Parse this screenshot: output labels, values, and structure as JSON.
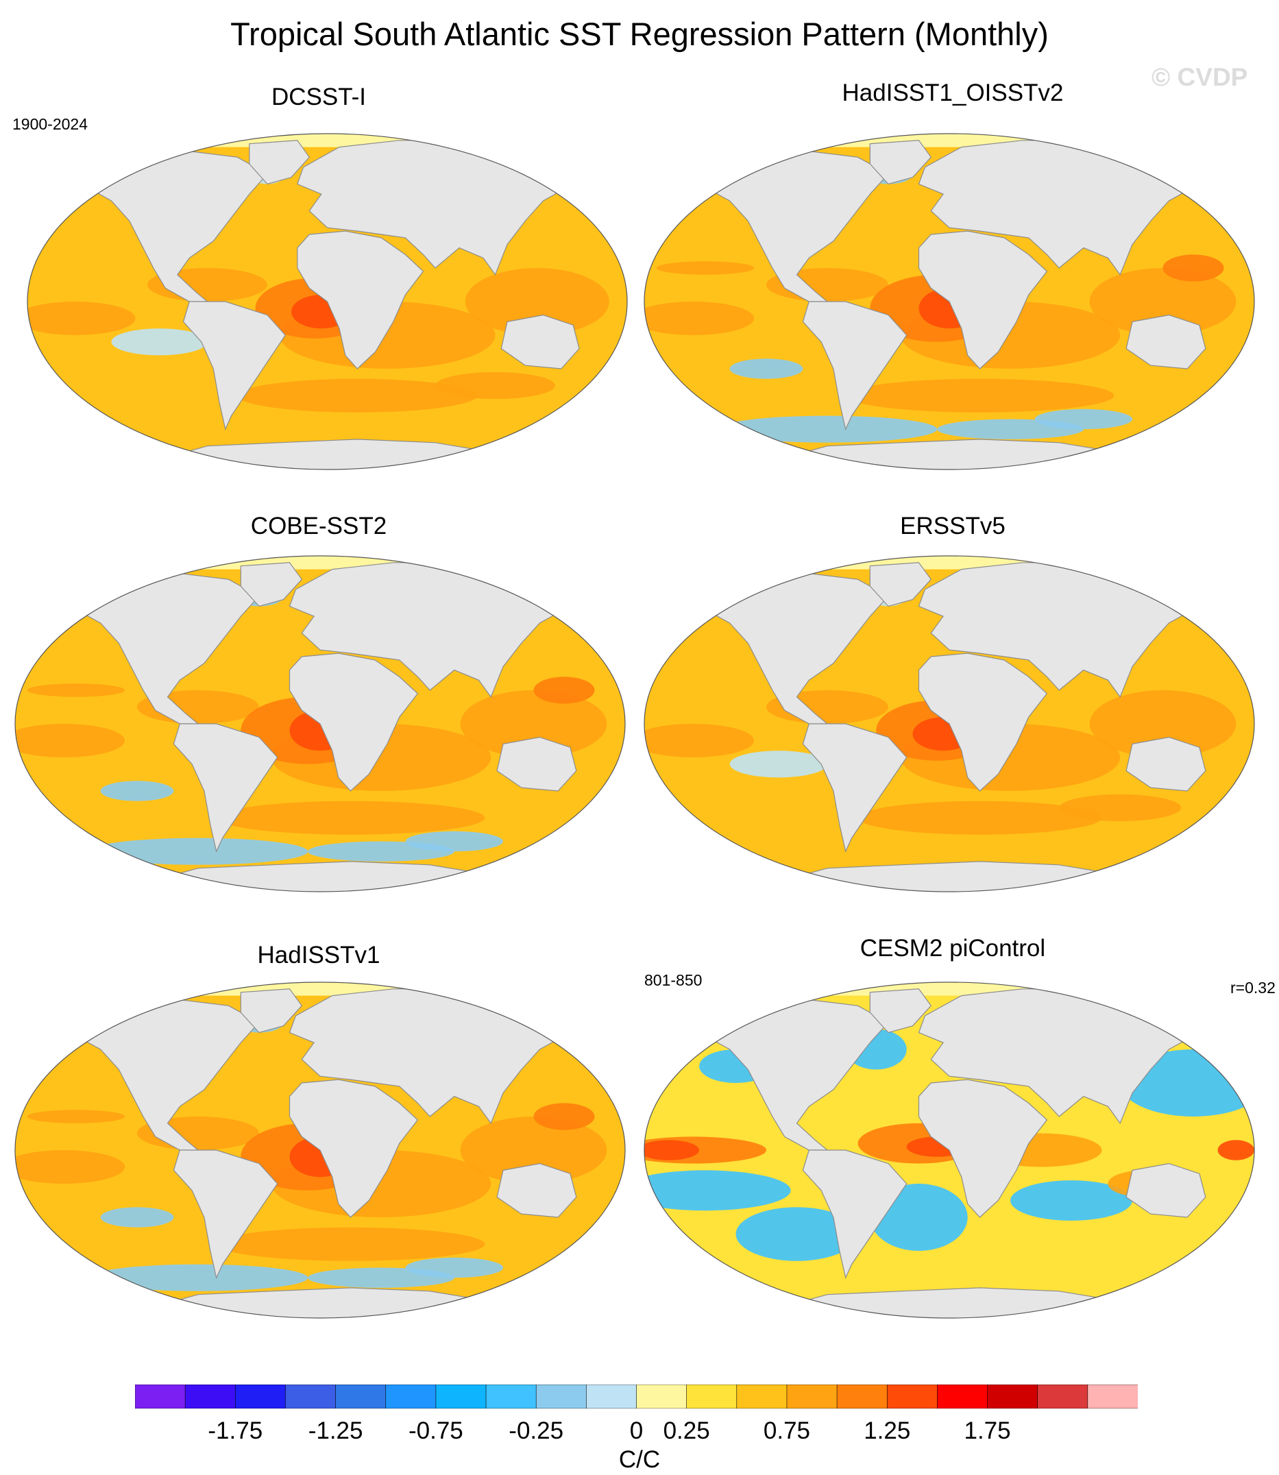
{
  "title": "Tropical South Atlantic SST Regression Pattern (Monthly)",
  "watermark": "© CVDP",
  "period_obs": "1900-2024",
  "period_model": "801-850",
  "correlation": "r=0.32",
  "units": "C/C",
  "colors": {
    "land": "#e6e6e6",
    "coast": "#8c8c8c",
    "polar_ice": "#fff7a0"
  },
  "colorbar": {
    "colors": [
      "#7b1ff2",
      "#3d0ef5",
      "#1e1ef5",
      "#3c5ee6",
      "#2f78e8",
      "#1f95ff",
      "#0fb4ff",
      "#3fc2ff",
      "#8ccbee",
      "#bfe3f5",
      "#fff7a0",
      "#ffe23a",
      "#ffc21a",
      "#ffa312",
      "#ff800c",
      "#ff4b08",
      "#ff0000",
      "#d10000",
      "#dc3a3a",
      "#ffb3b3"
    ],
    "tick_labels": [
      "-1.75",
      "-1.25",
      "-0.75",
      "-0.25",
      "0",
      "0.25",
      "0.75",
      "1.25",
      "1.75"
    ]
  },
  "panels": [
    {
      "name": "DCSST-I",
      "base": "#ffc21a",
      "warm": "#ffa312",
      "hot": "#ff800c",
      "peak": "#ff4b08",
      "cold": "#bfe3f5",
      "pattern": "obs"
    },
    {
      "name": "HadISST1_OISSTv2",
      "base": "#ffc21a",
      "warm": "#ffa312",
      "hot": "#ff800c",
      "peak": "#ff4b08",
      "cold": "#8ccbee",
      "pattern": "obs-noisy"
    },
    {
      "name": "COBE-SST2",
      "base": "#ffc21a",
      "warm": "#ffa312",
      "hot": "#ff800c",
      "peak": "#ff4b08",
      "cold": "#8ccbee",
      "pattern": "obs-noisy"
    },
    {
      "name": "ERSSTv5",
      "base": "#ffc21a",
      "warm": "#ffa312",
      "hot": "#ff800c",
      "peak": "#ff4b08",
      "cold": "#bfe3f5",
      "pattern": "obs"
    },
    {
      "name": "HadISSTv1",
      "base": "#ffc21a",
      "warm": "#ffa312",
      "hot": "#ff800c",
      "peak": "#ff4b08",
      "cold": "#8ccbee",
      "pattern": "obs-noisy"
    },
    {
      "name": "CESM2 piControl",
      "base": "#ffe23a",
      "warm": "#ffa312",
      "hot": "#ff800c",
      "peak": "#ff4b08",
      "cold": "#3fc2ff",
      "pattern": "model"
    }
  ]
}
